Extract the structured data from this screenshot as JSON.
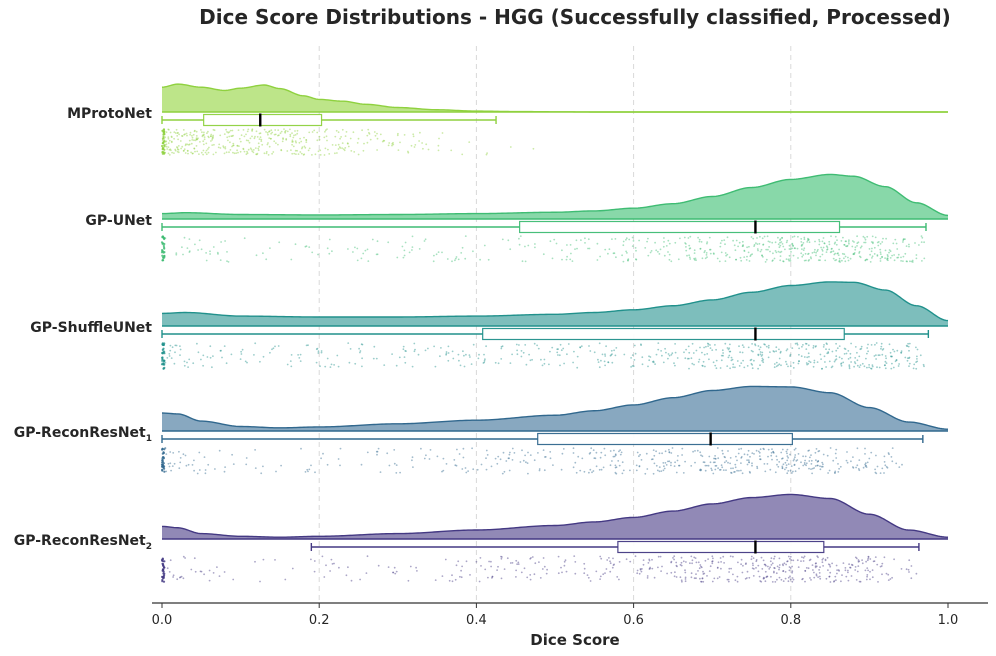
{
  "chart_data": {
    "type": "raincloud",
    "title": "Dice Score Distributions - HGG (Successfully classified, Processed)",
    "xlabel": "Dice Score",
    "ylabel": "",
    "xlim": [
      0.0,
      1.0
    ],
    "xticks": [
      0.0,
      0.2,
      0.4,
      0.6,
      0.8,
      1.0
    ],
    "xtick_labels": [
      "0.0",
      "0.2",
      "0.4",
      "0.6",
      "0.8",
      "1.0"
    ],
    "grid": "vertical dashed",
    "series": [
      {
        "name": "MProtoNet",
        "label_main": "MProtoNet",
        "label_sub": "",
        "color": "#8fd13f",
        "fill": "#bde589",
        "box": {
          "whisker_low": 0.0,
          "q1": 0.053,
          "median": 0.125,
          "q3": 0.203,
          "whisker_high": 0.425
        },
        "density_x": [
          0,
          0.02,
          0.05,
          0.08,
          0.1,
          0.13,
          0.15,
          0.18,
          0.2,
          0.23,
          0.26,
          0.3,
          0.35,
          0.4,
          0.45,
          0.5,
          0.55,
          0.6,
          0.7,
          0.8,
          0.9,
          1.0
        ],
        "density_y": [
          0.55,
          0.62,
          0.55,
          0.48,
          0.53,
          0.6,
          0.52,
          0.36,
          0.28,
          0.24,
          0.17,
          0.1,
          0.05,
          0.02,
          0.01,
          0.005,
          0,
          0,
          0,
          0,
          0,
          0
        ],
        "points": {
          "min": 0.0,
          "max": 0.48,
          "n": 420
        }
      },
      {
        "name": "GP-UNet",
        "label_main": "GP-UNet",
        "label_sub": "",
        "color": "#3fbc73",
        "fill": "#88d8a9",
        "box": {
          "whisker_low": 0.0,
          "q1": 0.455,
          "median": 0.755,
          "q3": 0.862,
          "whisker_high": 0.972
        },
        "density_x": [
          0,
          0.03,
          0.1,
          0.2,
          0.3,
          0.4,
          0.5,
          0.55,
          0.6,
          0.65,
          0.7,
          0.75,
          0.8,
          0.85,
          0.88,
          0.92,
          0.96,
          1.0
        ],
        "density_y": [
          0.12,
          0.14,
          0.1,
          0.09,
          0.1,
          0.12,
          0.15,
          0.18,
          0.24,
          0.34,
          0.5,
          0.7,
          0.88,
          0.99,
          0.95,
          0.72,
          0.36,
          0.08
        ],
        "points": {
          "min": 0.0,
          "max": 0.97,
          "n": 560
        }
      },
      {
        "name": "GP-ShuffleUNet",
        "label_main": "GP-ShuffleUNet",
        "label_sub": "",
        "color": "#21918c",
        "fill": "#7dbebc",
        "box": {
          "whisker_low": 0.0,
          "q1": 0.408,
          "median": 0.755,
          "q3": 0.868,
          "whisker_high": 0.975
        },
        "density_x": [
          0,
          0.03,
          0.1,
          0.2,
          0.3,
          0.4,
          0.5,
          0.55,
          0.6,
          0.65,
          0.7,
          0.75,
          0.8,
          0.85,
          0.88,
          0.92,
          0.96,
          1.0
        ],
        "density_y": [
          0.28,
          0.3,
          0.22,
          0.2,
          0.2,
          0.22,
          0.26,
          0.3,
          0.36,
          0.45,
          0.58,
          0.75,
          0.9,
          0.98,
          0.97,
          0.8,
          0.45,
          0.12
        ],
        "points": {
          "min": 0.0,
          "max": 0.97,
          "n": 560
        }
      },
      {
        "name": "GP-ReconResNet1",
        "label_main": "GP-ReconResNet",
        "label_sub": "1",
        "color": "#31688e",
        "fill": "#88a8c0",
        "box": {
          "whisker_low": 0.0,
          "q1": 0.478,
          "median": 0.698,
          "q3": 0.802,
          "whisker_high": 0.968
        },
        "density_x": [
          0,
          0.02,
          0.05,
          0.1,
          0.15,
          0.2,
          0.3,
          0.4,
          0.5,
          0.55,
          0.6,
          0.65,
          0.7,
          0.75,
          0.8,
          0.85,
          0.9,
          0.95,
          1.0
        ],
        "density_y": [
          0.4,
          0.38,
          0.22,
          0.1,
          0.07,
          0.09,
          0.16,
          0.24,
          0.35,
          0.45,
          0.58,
          0.74,
          0.9,
          0.99,
          0.98,
          0.85,
          0.52,
          0.2,
          0.04
        ],
        "points": {
          "min": 0.0,
          "max": 0.96,
          "n": 500
        }
      },
      {
        "name": "GP-ReconResNet2",
        "label_main": "GP-ReconResNet",
        "label_sub": "2",
        "color": "#443983",
        "fill": "#9189b6",
        "box": {
          "whisker_low": 0.19,
          "q1": 0.58,
          "median": 0.755,
          "q3": 0.842,
          "whisker_high": 0.963
        },
        "density_x": [
          0,
          0.02,
          0.05,
          0.1,
          0.15,
          0.2,
          0.3,
          0.4,
          0.5,
          0.55,
          0.6,
          0.65,
          0.7,
          0.75,
          0.8,
          0.85,
          0.9,
          0.95,
          1.0
        ],
        "density_y": [
          0.28,
          0.25,
          0.12,
          0.06,
          0.04,
          0.06,
          0.12,
          0.2,
          0.3,
          0.38,
          0.48,
          0.62,
          0.78,
          0.92,
          0.99,
          0.9,
          0.55,
          0.2,
          0.04
        ],
        "points": {
          "min": 0.0,
          "max": 0.96,
          "n": 500
        }
      }
    ]
  }
}
